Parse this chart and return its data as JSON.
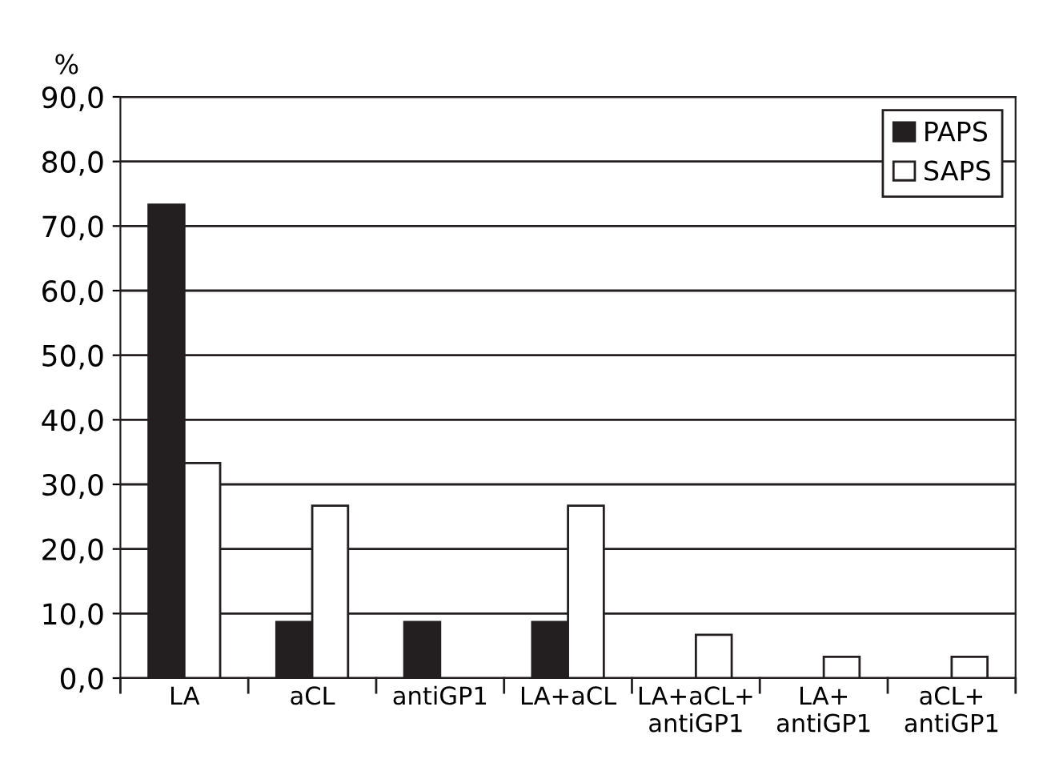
{
  "chart_data": {
    "type": "bar",
    "ylabel": "%",
    "categories": [
      "LA",
      "aCL",
      "antiGP1",
      "LA+aCL",
      "LA+aCL+\nantiGP1",
      "LA+\nantiGP1",
      "aCL+\nantiGP1"
    ],
    "series": [
      {
        "name": "PAPS",
        "color": "#231f20",
        "values": [
          73.3,
          8.7,
          8.7,
          8.7,
          0,
          0,
          0
        ]
      },
      {
        "name": "SAPS",
        "color": "#ffffff",
        "values": [
          33.3,
          26.7,
          0,
          26.7,
          6.7,
          3.3,
          3.3
        ]
      }
    ],
    "ylim": [
      0,
      90
    ],
    "yticks": [
      {
        "value": 0,
        "label": "0,0"
      },
      {
        "value": 10,
        "label": "10,0"
      },
      {
        "value": 20,
        "label": "20,0"
      },
      {
        "value": 30,
        "label": "30,0"
      },
      {
        "value": 40,
        "label": "40,0"
      },
      {
        "value": 50,
        "label": "50,0"
      },
      {
        "value": 60,
        "label": "60,0"
      },
      {
        "value": 70,
        "label": "70,0"
      },
      {
        "value": 80,
        "label": "80,0"
      },
      {
        "value": 90,
        "label": "90,0"
      }
    ],
    "grid": "y",
    "legend": "top right"
  }
}
